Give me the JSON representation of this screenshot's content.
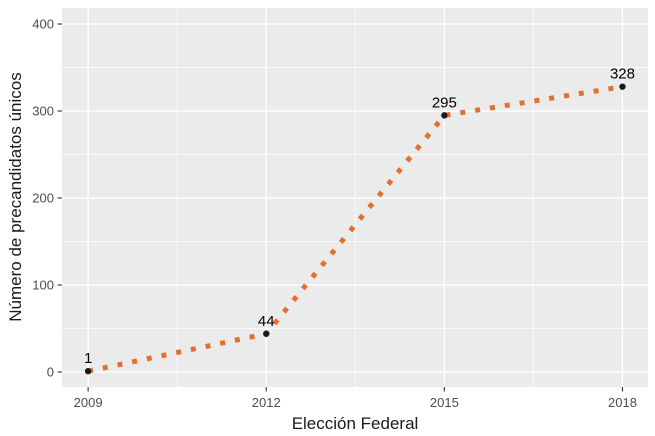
{
  "colors": {
    "background": "#FFFFFF",
    "panel_bg": "#EBEBEB",
    "grid": "#FFFFFF",
    "line": "#E2702E",
    "point": "#1A1A1A",
    "point_label": "#000000",
    "tick_label": "#4D4D4D",
    "tick_mark": "#333333",
    "axis_title": "#1A1A1A"
  },
  "chart_data": {
    "type": "line",
    "x": [
      2009,
      2012,
      2015,
      2018
    ],
    "y": [
      1,
      44,
      295,
      328
    ],
    "point_labels": [
      "1",
      "44",
      "295",
      "328"
    ],
    "x_ticks": [
      2009,
      2012,
      2015,
      2018
    ],
    "x_tick_labels": [
      "2009",
      "2012",
      "2015",
      "2018"
    ],
    "y_ticks": [
      0,
      100,
      200,
      300,
      400
    ],
    "y_tick_labels": [
      "0",
      "100",
      "200",
      "300",
      "400"
    ],
    "x_minor": [
      2010.5,
      2013.5,
      2016.5
    ],
    "y_minor": [
      50,
      150,
      250,
      350
    ],
    "xlim": [
      2008.56,
      2018.43
    ],
    "ylim": [
      -17.2,
      418.4
    ],
    "xlabel": "Elección Federal",
    "ylabel": "Número de precandidatos únicos",
    "line_style": "dotted",
    "grid": "on",
    "legend": "none"
  }
}
